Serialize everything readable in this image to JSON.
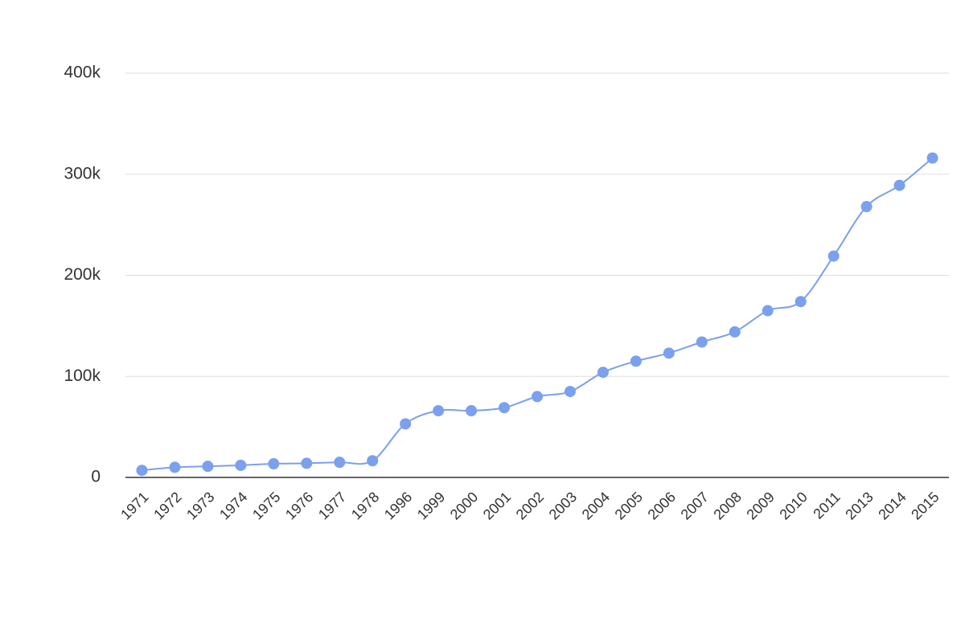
{
  "chart_data": {
    "type": "line",
    "categories": [
      "1971",
      "1972",
      "1973",
      "1974",
      "1975",
      "1976",
      "1977",
      "1978",
      "1996",
      "1999",
      "2000",
      "2001",
      "2002",
      "2003",
      "2004",
      "2005",
      "2006",
      "2007",
      "2008",
      "2009",
      "2010",
      "2011",
      "2013",
      "2014",
      "2015"
    ],
    "values": [
      7000,
      10000,
      11000,
      12000,
      13500,
      14000,
      15000,
      16500,
      53000,
      66000,
      66000,
      69000,
      80000,
      85000,
      104000,
      115000,
      123000,
      134000,
      144000,
      165000,
      174000,
      219000,
      268000,
      289000,
      316000
    ],
    "color": "#7ba0ee",
    "ylim": [
      0,
      400000
    ],
    "yticks": [
      0,
      {
        "value": 100000,
        "label": "100k"
      },
      {
        "value": 200000,
        "label": "200k"
      },
      {
        "value": 300000,
        "label": "300k"
      },
      {
        "value": 400000,
        "label": "400k"
      }
    ],
    "grid": true
  }
}
